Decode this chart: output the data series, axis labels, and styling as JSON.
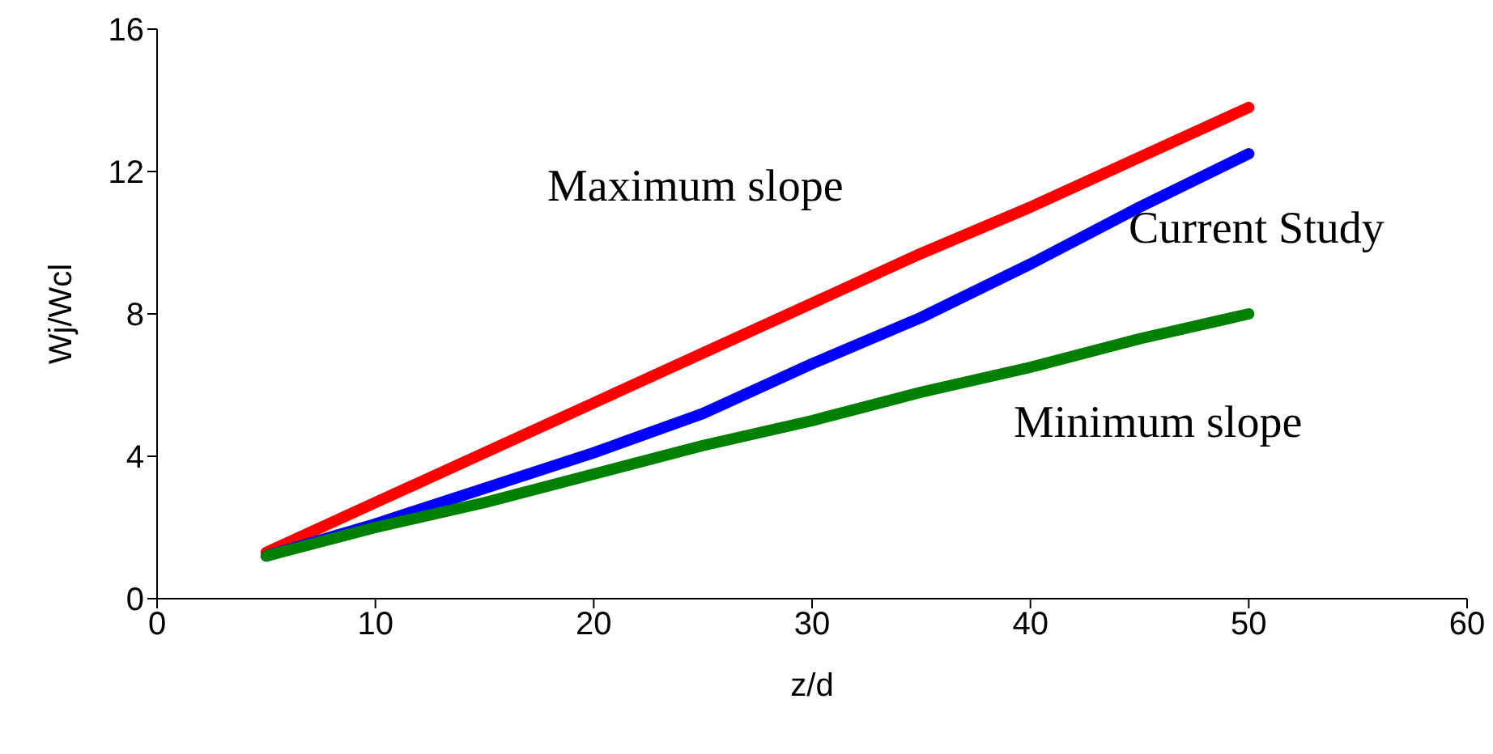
{
  "chart_data": {
    "type": "line",
    "xlabel": "z/d",
    "ylabel": "Wj/Wcl",
    "x": [
      5,
      10,
      15,
      20,
      25,
      30,
      35,
      40,
      45,
      50
    ],
    "series": [
      {
        "name": "Maximum slope",
        "color": "#ff0000",
        "values": [
          1.3,
          2.7,
          4.1,
          5.5,
          6.9,
          8.3,
          9.7,
          11.0,
          12.4,
          13.8
        ]
      },
      {
        "name": "Current Study",
        "color": "#0000ff",
        "values": [
          1.2,
          2.1,
          3.1,
          4.1,
          5.2,
          6.6,
          7.9,
          9.4,
          11.0,
          12.5
        ]
      },
      {
        "name": "Minimum slope",
        "color": "#008000",
        "values": [
          1.2,
          2.0,
          2.7,
          3.5,
          4.3,
          5.0,
          5.8,
          6.5,
          7.3,
          8.0
        ]
      }
    ],
    "xlim": [
      0,
      60
    ],
    "xticks": [
      0,
      10,
      20,
      30,
      40,
      50,
      60
    ],
    "ylim": [
      0,
      16
    ],
    "yticks": [
      0,
      4,
      8,
      12,
      16
    ],
    "marker": "none",
    "line_style": "solid"
  }
}
